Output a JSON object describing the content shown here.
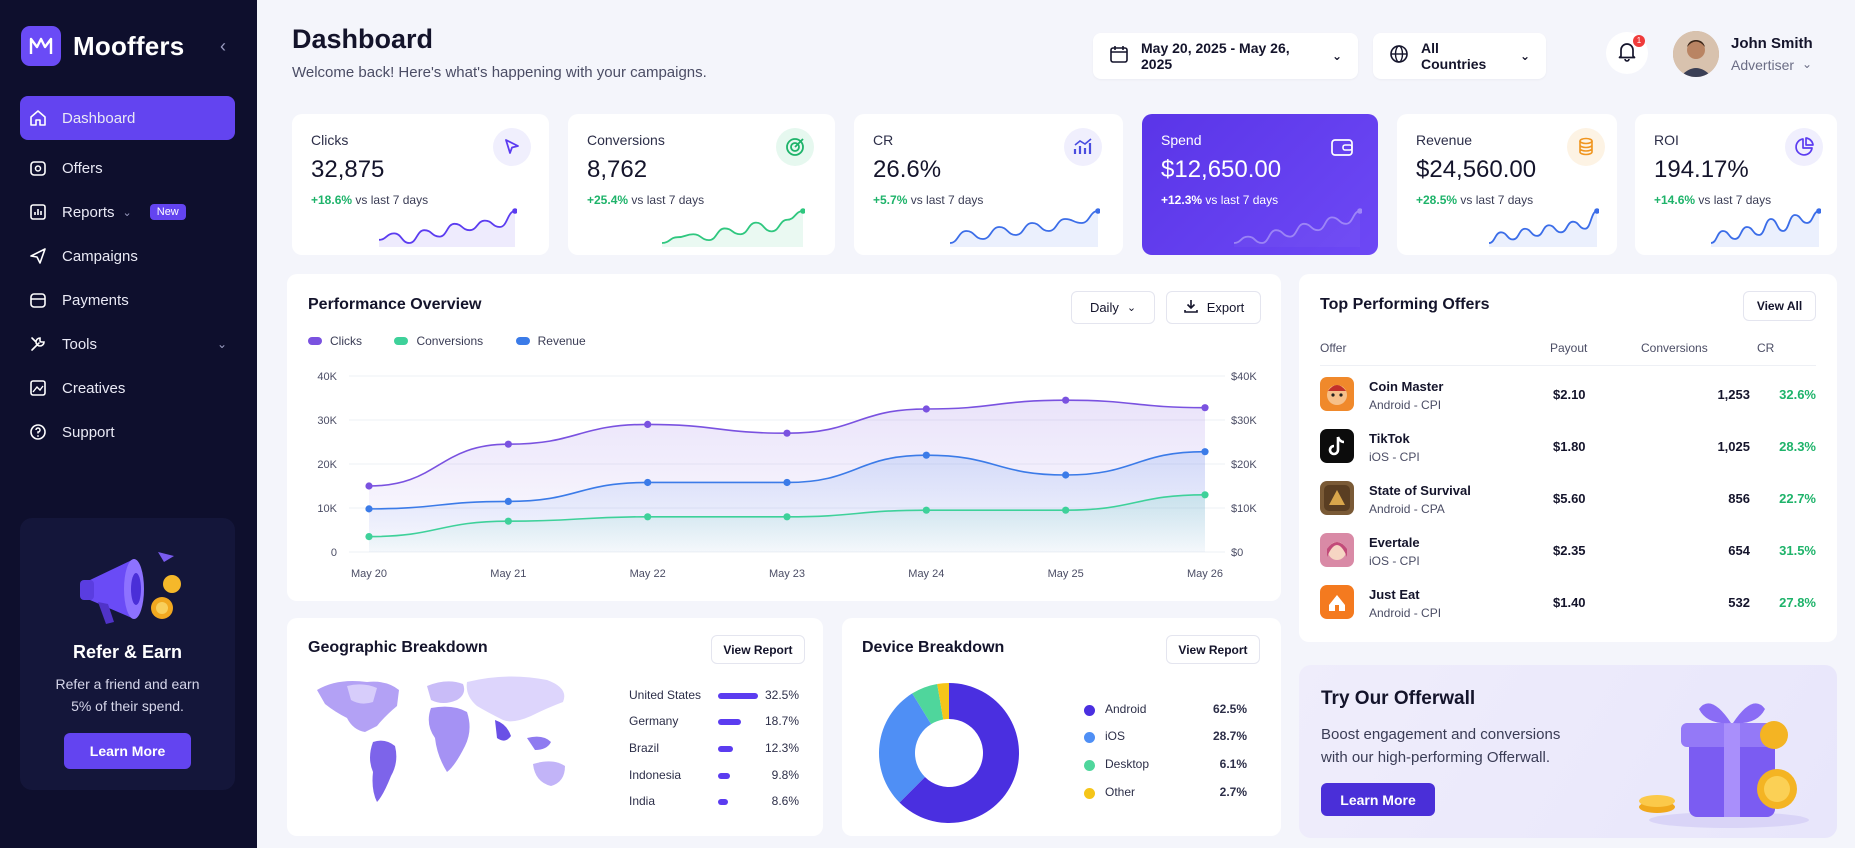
{
  "brand": {
    "name": "Mooffers"
  },
  "sidebar": {
    "items": [
      {
        "label": "Dashboard"
      },
      {
        "label": "Offers"
      },
      {
        "label": "Reports",
        "badge": "New"
      },
      {
        "label": "Campaigns"
      },
      {
        "label": "Payments"
      },
      {
        "label": "Tools"
      },
      {
        "label": "Creatives"
      },
      {
        "label": "Support"
      }
    ],
    "refer": {
      "title": "Refer & Earn",
      "subtitle": "Refer a friend and earn 5% of their spend.",
      "button": "Learn More"
    }
  },
  "header": {
    "title": "Dashboard",
    "subtitle": "Welcome back! Here's what's happening with your campaigns.",
    "date_range": "May 20, 2025 - May 26, 2025",
    "country": "All Countries",
    "notifications": "1",
    "user_name": "John Smith",
    "user_role": "Advertiser"
  },
  "kpis": [
    {
      "label": "Clicks",
      "value": "32,875",
      "delta": "+18.6%",
      "delta_text": "vs last 7 days",
      "icon": "cursor-icon",
      "spark": [
        3,
        5,
        2,
        6,
        4,
        8,
        6,
        9,
        7,
        12
      ]
    },
    {
      "label": "Conversions",
      "value": "8,762",
      "delta": "+25.4%",
      "delta_text": "vs last 7 days",
      "icon": "target-icon",
      "spark": [
        2,
        4,
        5,
        3,
        7,
        5,
        9,
        6,
        10,
        13
      ]
    },
    {
      "label": "CR",
      "value": "26.6%",
      "delta": "+5.7%",
      "delta_text": "vs last 7 days",
      "icon": "growth-chart-icon",
      "spark": [
        3,
        6,
        4,
        7,
        5,
        8,
        6,
        9,
        8,
        11
      ]
    },
    {
      "label": "Spend",
      "value": "$12,650.00",
      "delta": "+12.3%",
      "delta_text": "vs last 7 days",
      "icon": "wallet-icon",
      "spark": [
        2,
        3,
        2,
        4,
        3,
        5,
        4,
        6,
        5,
        7
      ]
    },
    {
      "label": "Revenue",
      "value": "$24,560.00",
      "delta": "+28.5%",
      "delta_text": "vs last 7 days",
      "icon": "coins-icon",
      "spark": [
        2,
        5,
        3,
        6,
        4,
        7,
        5,
        8,
        6,
        11
      ]
    },
    {
      "label": "ROI",
      "value": "194.17%",
      "delta": "+14.6%",
      "delta_text": "vs last 7 days",
      "icon": "pie-icon",
      "spark": [
        2,
        5,
        3,
        6,
        4,
        8,
        5,
        9,
        7,
        10
      ]
    }
  ],
  "performance": {
    "title": "Performance Overview",
    "period": "Daily",
    "export": "Export",
    "colors": {
      "Clicks": "#7a52e0",
      "Conversions": "#3ed19a",
      "Revenue": "#3b7be8"
    }
  },
  "chart_data": {
    "type": "area",
    "categories": [
      "May 20",
      "May 21",
      "May 22",
      "May 23",
      "May 24",
      "May 25",
      "May 26"
    ],
    "series": [
      {
        "name": "Clicks",
        "values": [
          15000,
          24500,
          29000,
          27000,
          32500,
          34500,
          32800
        ]
      },
      {
        "name": "Conversions",
        "values": [
          3500,
          7000,
          8000,
          8000,
          9500,
          9500,
          13000
        ]
      },
      {
        "name": "Revenue",
        "values": [
          9800,
          11500,
          15800,
          15800,
          22000,
          17500,
          22800
        ]
      }
    ],
    "ylim": [
      0,
      40000
    ],
    "y_ticks_left": [
      "0",
      "10K",
      "20K",
      "30K",
      "40K"
    ],
    "y_ticks_right": [
      "$0",
      "$10K",
      "$20K",
      "$30K",
      "$40K"
    ],
    "legend": "top-left",
    "grid": true
  },
  "top_offers": {
    "title": "Top Performing Offers",
    "view_all": "View All",
    "columns": [
      "Offer",
      "Payout",
      "Conversions",
      "CR"
    ],
    "rows": [
      {
        "name": "Coin Master",
        "platform": "Android - CPI",
        "payout": "$2.10",
        "conversions": "1,253",
        "cr": "32.6%",
        "color": "#f0892b"
      },
      {
        "name": "TikTok",
        "platform": "iOS - CPI",
        "payout": "$1.80",
        "conversions": "1,025",
        "cr": "28.3%",
        "color": "#0c0c0c"
      },
      {
        "name": "State of Survival",
        "platform": "Android - CPA",
        "payout": "$5.60",
        "conversions": "856",
        "cr": "22.7%",
        "color": "#7a5a36"
      },
      {
        "name": "Evertale",
        "platform": "iOS - CPI",
        "payout": "$2.35",
        "conversions": "654",
        "cr": "31.5%",
        "color": "#d98aa6"
      },
      {
        "name": "Just Eat",
        "platform": "Android - CPI",
        "payout": "$1.40",
        "conversions": "532",
        "cr": "27.8%",
        "color": "#f47a1f"
      }
    ]
  },
  "geo": {
    "title": "Geographic Breakdown",
    "button": "View Report",
    "rows": [
      {
        "country": "United States",
        "pct": "32.5%",
        "value": 0.325
      },
      {
        "country": "Germany",
        "pct": "18.7%",
        "value": 0.187
      },
      {
        "country": "Brazil",
        "pct": "12.3%",
        "value": 0.123
      },
      {
        "country": "Indonesia",
        "pct": "9.8%",
        "value": 0.098
      },
      {
        "country": "India",
        "pct": "8.6%",
        "value": 0.086
      }
    ]
  },
  "device": {
    "title": "Device Breakdown",
    "button": "View Report",
    "rows": [
      {
        "name": "Android",
        "pct": "62.5%",
        "value": 62.5,
        "color": "#4a2fe0"
      },
      {
        "name": "iOS",
        "pct": "28.7%",
        "value": 28.7,
        "color": "#4f8ff5"
      },
      {
        "name": "Desktop",
        "pct": "6.1%",
        "value": 6.1,
        "color": "#4fd69c"
      },
      {
        "name": "Other",
        "pct": "2.7%",
        "value": 2.7,
        "color": "#f5c519"
      }
    ]
  },
  "offerwall": {
    "title": "Try Our Offerwall",
    "subtitle": "Boost engagement and conversions with our high-performing Offerwall.",
    "button": "Learn More"
  }
}
